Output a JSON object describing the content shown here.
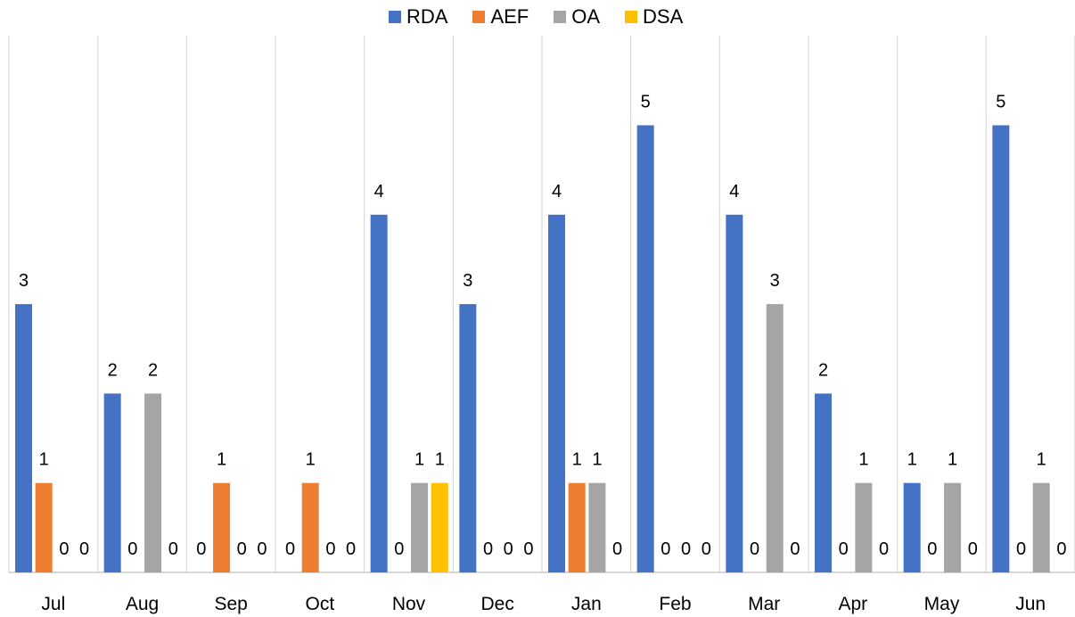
{
  "chart_data": {
    "type": "bar",
    "title": "",
    "categories": [
      "Jul",
      "Aug",
      "Sep",
      "Oct",
      "Nov",
      "Dec",
      "Jan",
      "Feb",
      "Mar",
      "Apr",
      "May",
      "Jun"
    ],
    "series": [
      {
        "name": "RDA",
        "color": "#4472C4",
        "values": [
          3,
          2,
          0,
          0,
          4,
          3,
          4,
          5,
          4,
          2,
          1,
          5
        ]
      },
      {
        "name": "AEF",
        "color": "#ED7D31",
        "values": [
          1,
          0,
          1,
          1,
          0,
          0,
          1,
          0,
          0,
          0,
          0,
          0
        ]
      },
      {
        "name": "OA",
        "color": "#A5A5A5",
        "values": [
          0,
          2,
          0,
          0,
          1,
          0,
          1,
          0,
          3,
          1,
          1,
          1
        ]
      },
      {
        "name": "DSA",
        "color": "#FFC000",
        "values": [
          0,
          0,
          0,
          0,
          1,
          0,
          0,
          0,
          0,
          0,
          0,
          0
        ]
      }
    ],
    "ylim": [
      0,
      6
    ],
    "grid": "vertical category separators",
    "legend": "top",
    "data_labels": true
  }
}
